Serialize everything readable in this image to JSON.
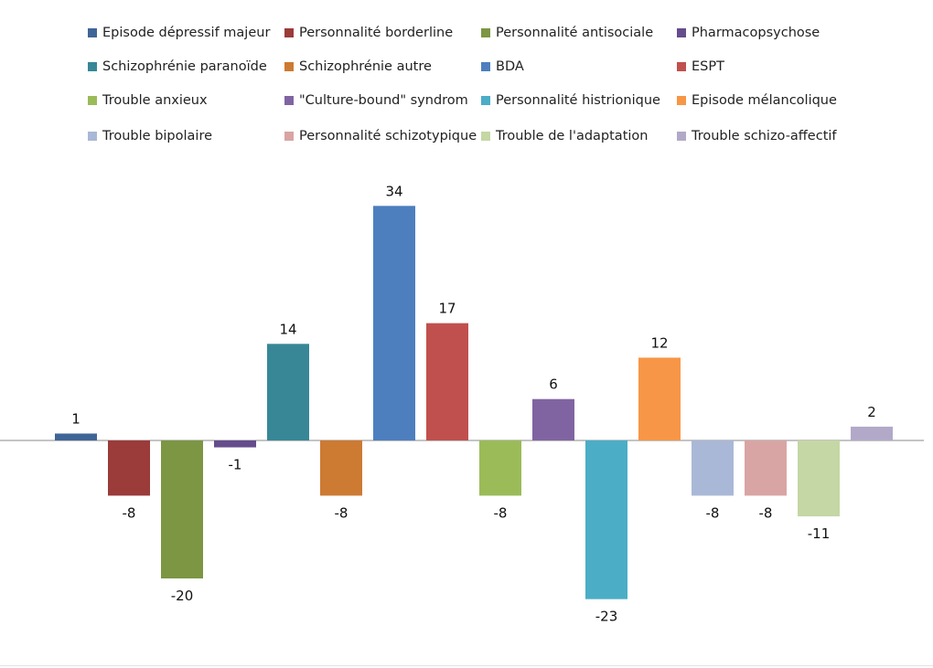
{
  "chart_data": {
    "type": "bar",
    "title": "",
    "xlabel": "",
    "ylabel": "",
    "grid": false,
    "legend_position": "top",
    "ylim": [
      -25,
      36
    ],
    "categories": [
      "Episode dépressif majeur",
      "Personnalité borderline",
      "Personnalité antisociale",
      "Pharmacopsychose",
      "Schizophrénie paranoïde",
      "Schizophrénie autre",
      "BDA",
      "ESPT",
      "Trouble anxieux",
      "\"Culture-bound\" syndrom",
      "Personnalité histrionique",
      "Episode mélancolique",
      "Trouble bipolaire",
      "Personnalité schizotypique",
      "Trouble de l'adaptation",
      "Trouble schizo-affectif"
    ],
    "values": [
      1,
      -8,
      -20,
      -1,
      14,
      -8,
      34,
      17,
      -8,
      6,
      -23,
      12,
      -8,
      -8,
      -11,
      2
    ],
    "colors": [
      "#3f6597",
      "#9b3b3a",
      "#7c9644",
      "#654c8c",
      "#378797",
      "#cd7a33",
      "#4d7fbe",
      "#c0504d",
      "#9bbb59",
      "#8064a2",
      "#4badc6",
      "#f79646",
      "#a9b8d6",
      "#d9a4a4",
      "#c4d7a4",
      "#b2a9c8"
    ]
  }
}
